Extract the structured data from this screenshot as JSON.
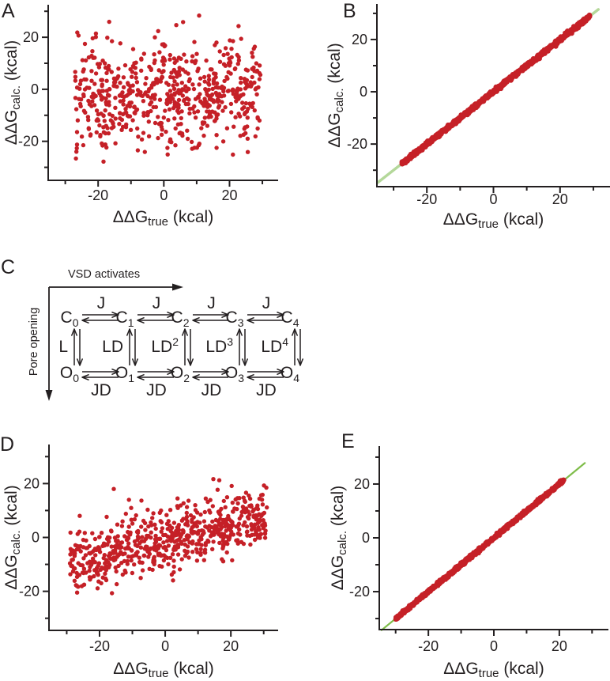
{
  "panel_letters": {
    "a": "A",
    "b": "B",
    "c": "C",
    "d": "D",
    "e": "E"
  },
  "colors": {
    "marker": "#c52027",
    "line_b": "#b4d89a",
    "line_e": "#7fbd4a",
    "ink": "#231f20"
  },
  "chart_data": [
    {
      "panel": "A",
      "type": "scatter",
      "trend": "uncorrelated",
      "xlabel": {
        "base": "ΔΔG",
        "sub": "true",
        "rest": " (kcal)"
      },
      "ylabel": {
        "base": "ΔΔG",
        "sub": "calc.",
        "rest": " (kcal)"
      },
      "xlim": [
        -35.2,
        34.8
      ],
      "ylim": [
        -35,
        32.5
      ],
      "x_major_ticks": [
        -20,
        0,
        20
      ],
      "x_minor_ticks": [
        -30,
        -10,
        10,
        30
      ],
      "y_major_ticks": [
        -20,
        0,
        20
      ],
      "y_minor_ticks": [
        -30,
        -10,
        10,
        30
      ],
      "marker_color": "#c52027",
      "marker_radius": 2.7,
      "generator": {
        "seed": 7,
        "n": 640,
        "x_min": -27,
        "x_max": 29.5,
        "model": "uncorrelated",
        "y_mean": -1.5,
        "y_sd": 10,
        "y_clip": [
          -33.2,
          31.2
        ]
      }
    },
    {
      "panel": "B",
      "type": "scatter",
      "trend": "identity",
      "xlabel": {
        "base": "ΔΔG",
        "sub": "true",
        "rest": " (kcal)"
      },
      "ylabel": {
        "base": "ΔΔG",
        "sub": "calc.",
        "rest": " (kcal)"
      },
      "xlim": [
        -35,
        35
      ],
      "ylim": [
        -36.3,
        33.6
      ],
      "x_major_ticks": [
        -20,
        0,
        20
      ],
      "x_minor_ticks": [
        -30,
        -10,
        10,
        30
      ],
      "y_major_ticks": [
        -20,
        0,
        20
      ],
      "y_minor_ticks": [
        -30,
        -10,
        10,
        30
      ],
      "marker_color": "#c52027",
      "marker_radius": 3.3,
      "fit_line": {
        "x1": -34.8,
        "y1": -34.8,
        "x2": 31.5,
        "y2": 31.5,
        "color": "#b4d89a",
        "width": 3.4
      },
      "generator": {
        "seed": 13,
        "n": 950,
        "x_min": -27.5,
        "x_max": 29,
        "model": "identity",
        "noise_sd": 0.35
      }
    },
    {
      "panel": "D",
      "type": "scatter",
      "trend": "positive-linear",
      "xlabel": {
        "base": "ΔΔG",
        "sub": "true",
        "rest": " (kcal)"
      },
      "ylabel": {
        "base": "ΔΔG",
        "sub": "calc.",
        "rest": " (kcal)"
      },
      "xlim": [
        -35.4,
        34.4
      ],
      "ylim": [
        -34.5,
        34.5
      ],
      "x_major_ticks": [
        -20,
        0,
        20
      ],
      "x_minor_ticks": [
        -30,
        -10,
        10,
        30
      ],
      "y_major_ticks": [
        -20,
        0,
        20
      ],
      "y_minor_ticks": [
        -30,
        -10,
        10,
        30
      ],
      "marker_color": "#c52027",
      "marker_radius": 2.7,
      "generator": {
        "seed": 21,
        "n": 670,
        "x_min": -29,
        "x_max": 31,
        "model": "linear",
        "slope": 0.29,
        "intercept": -0.8,
        "noise_sd": 5.6,
        "y_clip": [
          -24.5,
          25.5
        ]
      }
    },
    {
      "panel": "E",
      "type": "scatter",
      "trend": "identity",
      "xlabel": {
        "base": "ΔΔG",
        "sub": "true",
        "rest": " (kcal)"
      },
      "ylabel": {
        "base": "ΔΔG",
        "sub": "calc.",
        "rest": " (kcal)"
      },
      "xlim": [
        -35,
        35
      ],
      "ylim": [
        -34.1,
        34.1
      ],
      "x_major_ticks": [
        -20,
        0,
        20
      ],
      "x_minor_ticks": [
        -30,
        -10,
        10,
        30
      ],
      "y_major_ticks": [
        -20,
        0,
        20
      ],
      "y_minor_ticks": [
        -30,
        -10,
        10,
        30
      ],
      "marker_color": "#c52027",
      "marker_radius": 3.2,
      "fit_line": {
        "x1": -34.3,
        "y1": -34.3,
        "x2": 27.8,
        "y2": 27.8,
        "color": "#7fbd4a",
        "width": 2.2
      },
      "generator": {
        "seed": 29,
        "n": 900,
        "x_min": -30,
        "x_max": 21.4,
        "model": "identity",
        "noise_sd": 0.3
      }
    }
  ],
  "scheme": {
    "x_axis_label": "VSD activates",
    "y_axis_label": "Pore opening",
    "closed_states": [
      {
        "base": "C",
        "sub": "0"
      },
      {
        "base": "C",
        "sub": "1"
      },
      {
        "base": "C",
        "sub": "2"
      },
      {
        "base": "C",
        "sub": "3"
      },
      {
        "base": "C",
        "sub": "4"
      }
    ],
    "open_states": [
      {
        "base": "O",
        "sub": "0"
      },
      {
        "base": "O",
        "sub": "1"
      },
      {
        "base": "O",
        "sub": "2"
      },
      {
        "base": "O",
        "sub": "3"
      },
      {
        "base": "O",
        "sub": "4"
      }
    ],
    "closed_transition_labels": [
      "J",
      "J",
      "J",
      "J"
    ],
    "open_transition_labels": [
      "JD",
      "JD",
      "JD",
      "JD"
    ],
    "vertical_transition_labels": [
      {
        "base": "L",
        "sup": ""
      },
      {
        "base": "LD",
        "sup": ""
      },
      {
        "base": "LD",
        "sup": "2"
      },
      {
        "base": "LD",
        "sup": "3"
      },
      {
        "base": "LD",
        "sup": "4"
      }
    ]
  }
}
